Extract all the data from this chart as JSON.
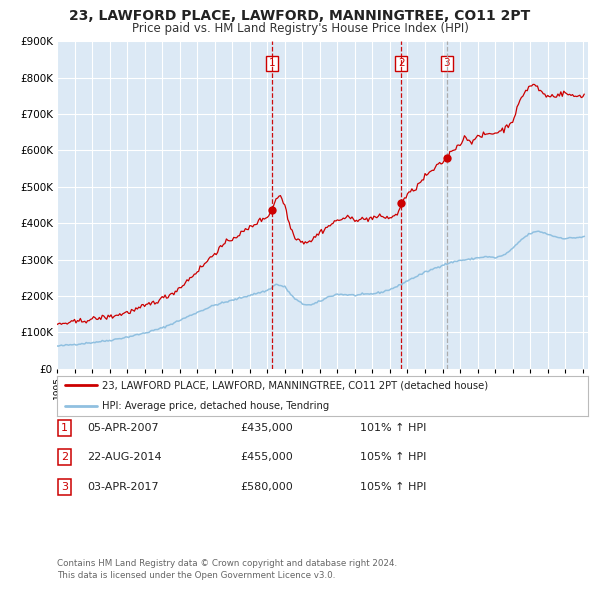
{
  "title": "23, LAWFORD PLACE, LAWFORD, MANNINGTREE, CO11 2PT",
  "subtitle": "Price paid vs. HM Land Registry's House Price Index (HPI)",
  "bg_color": "#ffffff",
  "plot_bg_color": "#dce9f5",
  "grid_color": "#ffffff",
  "sale_color": "#cc0000",
  "hpi_color": "#90c0e0",
  "ylim": [
    0,
    900000
  ],
  "yticks": [
    0,
    100000,
    200000,
    300000,
    400000,
    500000,
    600000,
    700000,
    800000,
    900000
  ],
  "sale_points": [
    {
      "date_num": 2007.27,
      "price": 435000,
      "label": "1"
    },
    {
      "date_num": 2014.65,
      "price": 455000,
      "label": "2"
    },
    {
      "date_num": 2017.25,
      "price": 580000,
      "label": "3"
    }
  ],
  "vline_dates": [
    2007.27,
    2014.65,
    2017.25
  ],
  "vline_colors": [
    "#cc0000",
    "#cc0000",
    "#aaaaaa"
  ],
  "legend_sale_label": "23, LAWFORD PLACE, LAWFORD, MANNINGTREE, CO11 2PT (detached house)",
  "legend_hpi_label": "HPI: Average price, detached house, Tendring",
  "table_rows": [
    {
      "num": "1",
      "date": "05-APR-2007",
      "price": "£435,000",
      "pct": "101% ↑ HPI"
    },
    {
      "num": "2",
      "date": "22-AUG-2014",
      "price": "£455,000",
      "pct": "105% ↑ HPI"
    },
    {
      "num": "3",
      "date": "03-APR-2017",
      "price": "£580,000",
      "pct": "105% ↑ HPI"
    }
  ],
  "footer": "Contains HM Land Registry data © Crown copyright and database right 2024.\nThis data is licensed under the Open Government Licence v3.0.",
  "box_label_color": "#cc0000"
}
